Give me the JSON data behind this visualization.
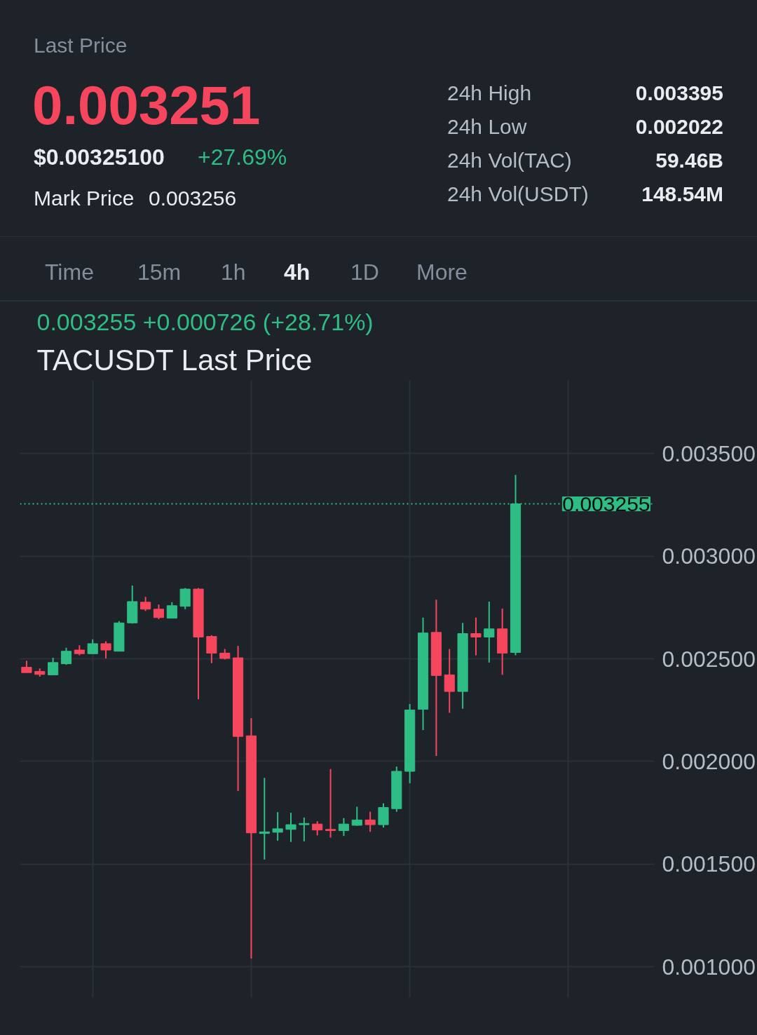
{
  "chart_data": {
    "type": "candlestick",
    "title": "TACUSDT Last Price",
    "subtitle": "0.003255  +0.000726 (+28.71%)",
    "annotations": [
      "Last Price",
      "0.003251",
      "$0.00325100",
      "+27.69%",
      "Mark Price",
      "0.003256",
      "24h High",
      "0.003395",
      "24h Low",
      "0.002022",
      "24h Vol(TAC)",
      "59.46B",
      "24h Vol(USDT)",
      "148.54M",
      "Time",
      "15m",
      "1h",
      "4h",
      "1D",
      "More"
    ],
    "categories": [
      null,
      null,
      null,
      null,
      null,
      null,
      null,
      null,
      null,
      null,
      null,
      null,
      null,
      null,
      null,
      null,
      null,
      null,
      null,
      null,
      null,
      null,
      null,
      null,
      null,
      null,
      null,
      null,
      null,
      null,
      null,
      null,
      null,
      null,
      null,
      null,
      null,
      null,
      null,
      null,
      null,
      null,
      null,
      null,
      null,
      null,
      null,
      null
    ],
    "ohlc": [
      [
        0.002459,
        0.002491,
        0.002433,
        0.002433
      ],
      [
        0.002439,
        0.002453,
        0.002413,
        0.002424
      ],
      [
        0.002422,
        0.002505,
        0.002422,
        0.002482
      ],
      [
        0.002476,
        0.002554,
        0.002471,
        0.002537
      ],
      [
        0.002543,
        0.002566,
        0.002517,
        0.002525
      ],
      [
        0.002525,
        0.002595,
        0.002525,
        0.002574
      ],
      [
        0.002574,
        0.002586,
        0.002502,
        0.002543
      ],
      [
        0.002537,
        0.002684,
        0.002537,
        0.002675
      ],
      [
        0.002675,
        0.002857,
        0.002672,
        0.002779
      ],
      [
        0.002776,
        0.002802,
        0.002733,
        0.002742
      ],
      [
        0.002742,
        0.002765,
        0.002693,
        0.002701
      ],
      [
        0.002698,
        0.002776,
        0.002698,
        0.002759
      ],
      [
        0.002756,
        0.002845,
        0.002742,
        0.00284
      ],
      [
        0.00284,
        0.002845,
        0.002303,
        0.002606
      ],
      [
        0.002609,
        0.002615,
        0.002479,
        0.002528
      ],
      [
        0.002528,
        0.002548,
        0.002497,
        0.002502
      ],
      [
        0.002505,
        0.002563,
        0.001856,
        0.002122
      ],
      [
        0.002125,
        0.002211,
        0.00104,
        0.001652
      ],
      [
        0.001649,
        0.00192,
        0.001522,
        0.001657
      ],
      [
        0.001655,
        0.001753,
        0.001614,
        0.001672
      ],
      [
        0.001669,
        0.00175,
        0.001608,
        0.001692
      ],
      [
        0.001692,
        0.001727,
        0.001611,
        0.001698
      ],
      [
        0.001695,
        0.001709,
        0.00164,
        0.001666
      ],
      [
        0.001669,
        0.001963,
        0.001629,
        0.001663
      ],
      [
        0.001663,
        0.001724,
        0.001637,
        0.001695
      ],
      [
        0.001689,
        0.001779,
        0.001686,
        0.001715
      ],
      [
        0.001715,
        0.001755,
        0.001657,
        0.001692
      ],
      [
        0.001692,
        0.001796,
        0.001678,
        0.001776
      ],
      [
        0.00177,
        0.001975,
        0.001755,
        0.001952
      ],
      [
        0.001952,
        0.00228,
        0.001894,
        0.002251
      ],
      [
        0.002254,
        0.002701,
        0.002153,
        0.002626
      ],
      [
        0.002629,
        0.002788,
        0.002027,
        0.002419
      ],
      [
        0.002422,
        0.002548,
        0.002237,
        0.002341
      ],
      [
        0.002341,
        0.002675,
        0.002257,
        0.002623
      ],
      [
        0.002623,
        0.002701,
        0.002517,
        0.002606
      ],
      [
        0.002606,
        0.002779,
        0.002482,
        0.002646
      ],
      [
        0.002646,
        0.002745,
        0.002422,
        0.002528
      ],
      [
        0.002531,
        0.003396,
        0.002517,
        0.003255
      ],
      null,
      null,
      null,
      null,
      null,
      null,
      null,
      null,
      null,
      null
    ],
    "ylim": [
      0.00085,
      0.00386
    ],
    "yticks": [
      {
        "value": 0.001,
        "label": "0.001000"
      },
      {
        "value": 0.0015,
        "label": "0.001500"
      },
      {
        "value": 0.002,
        "label": "0.002000"
      },
      {
        "value": 0.0025,
        "label": "0.002500"
      },
      {
        "value": 0.003,
        "label": "0.003000"
      },
      {
        "value": 0.0035,
        "label": "0.003500"
      }
    ],
    "ref_lines": [
      {
        "axis": "y",
        "value": 0.003255,
        "label": "0.003255",
        "color": "#2ebd85",
        "line_style": "dotted"
      }
    ],
    "grid": true,
    "tick_labels": "y"
  }
}
